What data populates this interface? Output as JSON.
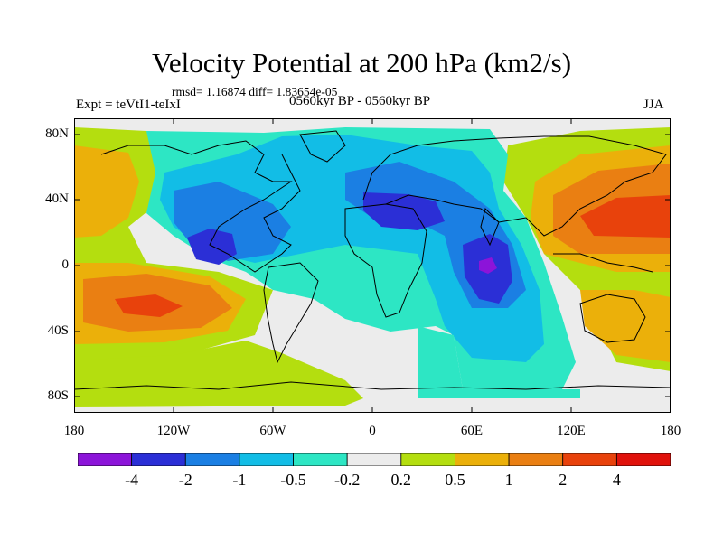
{
  "figure": {
    "title": "Velocity Potential at 200 hPa (km2/s)",
    "stats": "rmsd= 1.16874 diff= 1.83654e-05",
    "experiment": "Expt = teVtI1-teIxI",
    "period": "0560kyr BP - 0560kyr BP",
    "season": "JJA"
  },
  "map": {
    "type": "filled-contour",
    "projection": "cylindrical-equidistant",
    "lon_range": [
      -180,
      180
    ],
    "lat_range": [
      -90,
      90
    ],
    "lat_ticks": [
      "80N",
      "40N",
      "0",
      "40S",
      "80S"
    ],
    "lon_ticks": [
      "180",
      "120W",
      "60W",
      "0",
      "60E",
      "120E",
      "180"
    ],
    "coastlines": true
  },
  "colorbar": {
    "colors": [
      "#8c14d9",
      "#2b2fd6",
      "#1b7fe3",
      "#12bde6",
      "#2de6c4",
      "#ececec",
      "#b4de0f",
      "#ebb00a",
      "#ea7f12",
      "#e8420c",
      "#e0120c"
    ],
    "labels": [
      "-4",
      "-2",
      "-1",
      "-0.5",
      "-0.2",
      "0.2",
      "0.5",
      "1",
      "2",
      "4"
    ]
  }
}
